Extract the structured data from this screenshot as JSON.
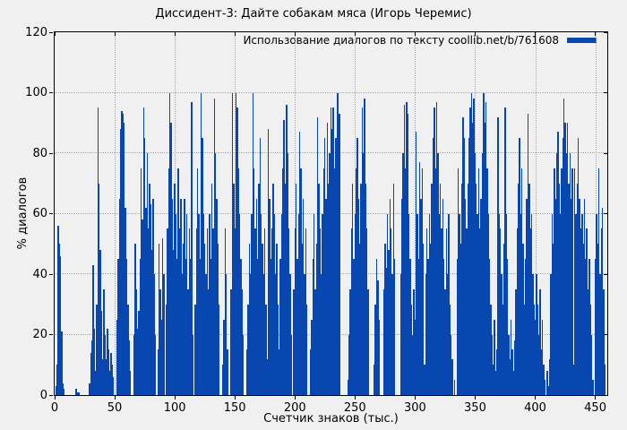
{
  "colors": {
    "background": "#f0f0f0",
    "bar": "#0846b0",
    "grid": "#a8a8a8",
    "axis": "#000000"
  },
  "chart_data": {
    "type": "bar",
    "style": "impulses",
    "title": "Диссидент-3: Дайте собакам мяса (Игорь Черемис)",
    "legend": {
      "label": "Использование диалогов по тексту coollib.net/b/761608",
      "position": "top-right-inside"
    },
    "xlabel": "Счетчик знаков (тыс.)",
    "ylabel": "% диалогов",
    "xlim": [
      0,
      460
    ],
    "ylim": [
      0,
      120
    ],
    "xticks": [
      0,
      50,
      100,
      150,
      200,
      250,
      300,
      350,
      400,
      450
    ],
    "yticks": [
      0,
      20,
      40,
      60,
      80,
      100,
      120
    ],
    "grid": true,
    "x_start": 0,
    "x_step": 1,
    "values": [
      0,
      3,
      10,
      56,
      50,
      46,
      21,
      4,
      2,
      0,
      0,
      0,
      0,
      0,
      0,
      0,
      0,
      0,
      2,
      1,
      1,
      0,
      0,
      0,
      0,
      0,
      0,
      0,
      0,
      4,
      14,
      18,
      43,
      22,
      8,
      30,
      95,
      70,
      48,
      28,
      12,
      35,
      20,
      12,
      22,
      15,
      8,
      14,
      10,
      6,
      0,
      0,
      25,
      45,
      65,
      88,
      94,
      93,
      90,
      62,
      45,
      30,
      18,
      8,
      0,
      0,
      20,
      50,
      35,
      22,
      28,
      45,
      75,
      58,
      95,
      85,
      62,
      80,
      55,
      70,
      63,
      48,
      65,
      40,
      20,
      0,
      15,
      50,
      35,
      25,
      52,
      40,
      0,
      30,
      55,
      75,
      100,
      90,
      65,
      48,
      70,
      60,
      45,
      75,
      55,
      65,
      40,
      50,
      65,
      45,
      60,
      35,
      55,
      45,
      97,
      20,
      0,
      30,
      55,
      75,
      60,
      45,
      100,
      85,
      60,
      50,
      40,
      55,
      35,
      60,
      45,
      70,
      55,
      98,
      80,
      65,
      50,
      30,
      0,
      0,
      10,
      25,
      55,
      40,
      15,
      0,
      0,
      35,
      100,
      70,
      55,
      100,
      95,
      75,
      60,
      45,
      35,
      20,
      0,
      0,
      15,
      30,
      50,
      40,
      60,
      100,
      75,
      55,
      65,
      45,
      70,
      85,
      60,
      50,
      40,
      55,
      30,
      12,
      88,
      65,
      45,
      55,
      70,
      60,
      40,
      50,
      30,
      15,
      45,
      60,
      75,
      91,
      70,
      96,
      80,
      55,
      40,
      20,
      0,
      35,
      55,
      70,
      45,
      60,
      87,
      75,
      50,
      65,
      40,
      55,
      30,
      0,
      0,
      15,
      25,
      45,
      60,
      35,
      50,
      92,
      70,
      55,
      40,
      60,
      75,
      85,
      65,
      90,
      70,
      80,
      95,
      88,
      95,
      75,
      85,
      100,
      100,
      93,
      0,
      0,
      0,
      0,
      0,
      0,
      5,
      20,
      35,
      55,
      70,
      45,
      60,
      75,
      85,
      65,
      50,
      70,
      95,
      80,
      98,
      70,
      55,
      35,
      0,
      0,
      0,
      0,
      10,
      30,
      45,
      38,
      25,
      0,
      0,
      0,
      35,
      50,
      42,
      60,
      48,
      65,
      55,
      40,
      70,
      45,
      0,
      0,
      0,
      0,
      40,
      65,
      80,
      96,
      75,
      97,
      93,
      60,
      45,
      30,
      20,
      35,
      25,
      87,
      60,
      45,
      77,
      65,
      75,
      50,
      10,
      40,
      55,
      45,
      60,
      50,
      70,
      85,
      95,
      75,
      97,
      80,
      60,
      70,
      55,
      65,
      45,
      35,
      55,
      40,
      60,
      30,
      20,
      12,
      0,
      5,
      0,
      45,
      75,
      60,
      50,
      70,
      92,
      85,
      65,
      55,
      70,
      85,
      95,
      100,
      90,
      98,
      80,
      70,
      60,
      75,
      55,
      65,
      80,
      100,
      90,
      97,
      75,
      60,
      45,
      30,
      20,
      10,
      25,
      8,
      15,
      92,
      60,
      55,
      40,
      30,
      50,
      95,
      60,
      45,
      20,
      12,
      25,
      15,
      8,
      18,
      35,
      55,
      70,
      85,
      60,
      75,
      50,
      30,
      45,
      65,
      93,
      70,
      55,
      60,
      40,
      30,
      25,
      40,
      30,
      20,
      35,
      15,
      25,
      10,
      5,
      0,
      8,
      3,
      12,
      40,
      60,
      50,
      75,
      65,
      80,
      87,
      70,
      60,
      75,
      85,
      98,
      90,
      80,
      90,
      70,
      80,
      65,
      75,
      10,
      75,
      60,
      70,
      85,
      65,
      55,
      60,
      50,
      65,
      45,
      55,
      35,
      45,
      30,
      20,
      5,
      0,
      45,
      60,
      50,
      75,
      40,
      55,
      62,
      35,
      10
    ]
  }
}
